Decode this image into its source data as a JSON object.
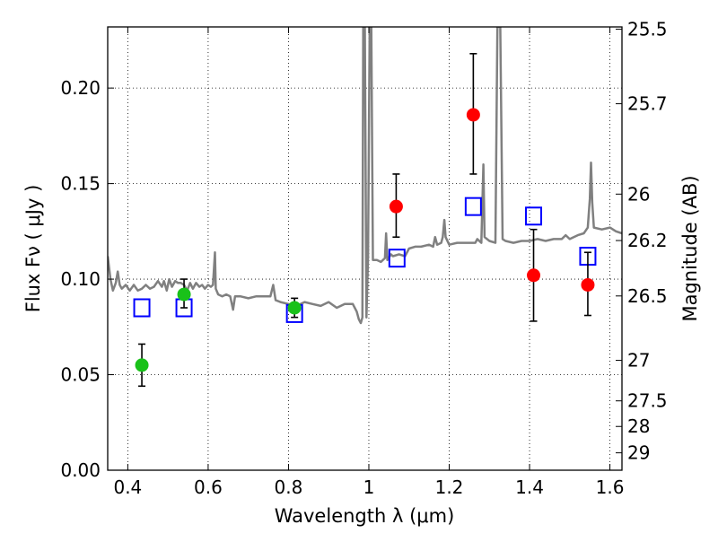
{
  "chart_data": {
    "type": "scatter",
    "xlabel": "Wavelength  λ (μm)",
    "ylabel": "Flux  Fν  ( μJy )",
    "ylabel_right": "Magnitude (AB)",
    "xlim": [
      0.35,
      1.63
    ],
    "ylim": [
      0.0,
      0.232
    ],
    "grid": true,
    "x_ticks": [
      {
        "value": 0.4,
        "label": "0.4"
      },
      {
        "value": 0.6,
        "label": "0.6"
      },
      {
        "value": 0.8,
        "label": "0.8"
      },
      {
        "value": 1.0,
        "label": "1"
      },
      {
        "value": 1.2,
        "label": "1.2"
      },
      {
        "value": 1.4,
        "label": "1.4"
      },
      {
        "value": 1.6,
        "label": "1.6"
      }
    ],
    "y_ticks": [
      {
        "value": 0.0,
        "label": "0.00"
      },
      {
        "value": 0.05,
        "label": "0.05"
      },
      {
        "value": 0.1,
        "label": "0.10"
      },
      {
        "value": 0.15,
        "label": "0.15"
      },
      {
        "value": 0.2,
        "label": "0.20"
      }
    ],
    "right_ticks": [
      {
        "flux": 0.2308,
        "label": "25.5"
      },
      {
        "flux": 0.1918,
        "label": "25.7"
      },
      {
        "flux": 0.1445,
        "label": "26"
      },
      {
        "flux": 0.1202,
        "label": "26.2"
      },
      {
        "flux": 0.0912,
        "label": "26.5"
      },
      {
        "flux": 0.0575,
        "label": "27"
      },
      {
        "flux": 0.0363,
        "label": "27.5"
      },
      {
        "flux": 0.0229,
        "label": "28"
      },
      {
        "flux": 0.0091,
        "label": "29"
      }
    ],
    "colors": {
      "model": "#808080",
      "optical": "#19c119",
      "nir": "#ff0000",
      "model_band": "#0000ff",
      "errorbar": "#000000",
      "grid": "#000000"
    },
    "series": [
      {
        "kind": "model_spectrum",
        "points": [
          [
            0.35,
            0.112
          ],
          [
            0.357,
            0.1
          ],
          [
            0.363,
            0.094
          ],
          [
            0.37,
            0.098
          ],
          [
            0.375,
            0.104
          ],
          [
            0.38,
            0.097
          ],
          [
            0.385,
            0.095
          ],
          [
            0.395,
            0.097
          ],
          [
            0.405,
            0.094
          ],
          [
            0.415,
            0.097
          ],
          [
            0.425,
            0.094
          ],
          [
            0.435,
            0.095
          ],
          [
            0.445,
            0.097
          ],
          [
            0.455,
            0.095
          ],
          [
            0.465,
            0.096
          ],
          [
            0.475,
            0.099
          ],
          [
            0.485,
            0.096
          ],
          [
            0.49,
            0.099
          ],
          [
            0.497,
            0.094
          ],
          [
            0.503,
            0.1
          ],
          [
            0.51,
            0.096
          ],
          [
            0.518,
            0.099
          ],
          [
            0.525,
            0.098
          ],
          [
            0.532,
            0.098
          ],
          [
            0.54,
            0.097
          ],
          [
            0.548,
            0.094
          ],
          [
            0.555,
            0.098
          ],
          [
            0.562,
            0.095
          ],
          [
            0.57,
            0.098
          ],
          [
            0.578,
            0.096
          ],
          [
            0.585,
            0.097
          ],
          [
            0.592,
            0.095
          ],
          [
            0.6,
            0.097
          ],
          [
            0.607,
            0.096
          ],
          [
            0.612,
            0.097
          ],
          [
            0.617,
            0.114
          ],
          [
            0.619,
            0.095
          ],
          [
            0.625,
            0.092
          ],
          [
            0.635,
            0.091
          ],
          [
            0.645,
            0.092
          ],
          [
            0.655,
            0.091
          ],
          [
            0.662,
            0.084
          ],
          [
            0.667,
            0.091
          ],
          [
            0.68,
            0.091
          ],
          [
            0.7,
            0.09
          ],
          [
            0.72,
            0.091
          ],
          [
            0.74,
            0.091
          ],
          [
            0.755,
            0.091
          ],
          [
            0.762,
            0.097
          ],
          [
            0.768,
            0.089
          ],
          [
            0.78,
            0.088
          ],
          [
            0.8,
            0.087
          ],
          [
            0.82,
            0.086
          ],
          [
            0.84,
            0.088
          ],
          [
            0.86,
            0.087
          ],
          [
            0.88,
            0.086
          ],
          [
            0.9,
            0.088
          ],
          [
            0.92,
            0.085
          ],
          [
            0.94,
            0.087
          ],
          [
            0.96,
            0.087
          ],
          [
            0.97,
            0.083
          ],
          [
            0.975,
            0.079
          ],
          [
            0.98,
            0.077
          ],
          [
            0.984,
            0.08
          ],
          [
            0.986,
            0.232
          ],
          [
            0.99,
            0.232
          ],
          [
            0.994,
            0.08
          ],
          [
            0.998,
            0.112
          ],
          [
            1.002,
            0.232
          ],
          [
            1.006,
            0.232
          ],
          [
            1.01,
            0.11
          ],
          [
            1.02,
            0.11
          ],
          [
            1.03,
            0.109
          ],
          [
            1.04,
            0.111
          ],
          [
            1.043,
            0.124
          ],
          [
            1.046,
            0.11
          ],
          [
            1.055,
            0.113
          ],
          [
            1.06,
            0.112
          ],
          [
            1.075,
            0.113
          ],
          [
            1.09,
            0.112
          ],
          [
            1.1,
            0.116
          ],
          [
            1.115,
            0.117
          ],
          [
            1.13,
            0.117
          ],
          [
            1.15,
            0.118
          ],
          [
            1.16,
            0.117
          ],
          [
            1.165,
            0.122
          ],
          [
            1.17,
            0.118
          ],
          [
            1.18,
            0.119
          ],
          [
            1.184,
            0.122
          ],
          [
            1.188,
            0.131
          ],
          [
            1.191,
            0.122
          ],
          [
            1.2,
            0.118
          ],
          [
            1.22,
            0.119
          ],
          [
            1.24,
            0.119
          ],
          [
            1.255,
            0.119
          ],
          [
            1.265,
            0.119
          ],
          [
            1.27,
            0.121
          ],
          [
            1.28,
            0.119
          ],
          [
            1.285,
            0.16
          ],
          [
            1.288,
            0.122
          ],
          [
            1.3,
            0.12
          ],
          [
            1.315,
            0.119
          ],
          [
            1.32,
            0.232
          ],
          [
            1.327,
            0.232
          ],
          [
            1.333,
            0.121
          ],
          [
            1.34,
            0.12
          ],
          [
            1.36,
            0.119
          ],
          [
            1.38,
            0.12
          ],
          [
            1.4,
            0.12
          ],
          [
            1.42,
            0.121
          ],
          [
            1.44,
            0.12
          ],
          [
            1.46,
            0.121
          ],
          [
            1.48,
            0.121
          ],
          [
            1.49,
            0.123
          ],
          [
            1.5,
            0.121
          ],
          [
            1.52,
            0.123
          ],
          [
            1.535,
            0.124
          ],
          [
            1.545,
            0.127
          ],
          [
            1.55,
            0.142
          ],
          [
            1.553,
            0.161
          ],
          [
            1.556,
            0.14
          ],
          [
            1.56,
            0.127
          ],
          [
            1.58,
            0.126
          ],
          [
            1.6,
            0.127
          ],
          [
            1.615,
            0.125
          ],
          [
            1.63,
            0.124
          ]
        ]
      },
      {
        "kind": "model_band_flux",
        "marker": "open-square",
        "points": [
          [
            0.435,
            0.085
          ],
          [
            0.54,
            0.085
          ],
          [
            0.815,
            0.082
          ],
          [
            1.07,
            0.111
          ],
          [
            1.26,
            0.138
          ],
          [
            1.41,
            0.133
          ],
          [
            1.545,
            0.112
          ]
        ]
      },
      {
        "kind": "observed_optical",
        "marker": "filled-circle",
        "points": [
          {
            "x": 0.435,
            "y": 0.055,
            "lo": 0.044,
            "hi": 0.066
          },
          {
            "x": 0.54,
            "y": 0.092,
            "lo": 0.085,
            "hi": 0.1
          },
          {
            "x": 0.815,
            "y": 0.085,
            "lo": 0.08,
            "hi": 0.09
          }
        ]
      },
      {
        "kind": "observed_nir",
        "marker": "filled-circle",
        "points": [
          {
            "x": 1.068,
            "y": 0.138,
            "lo": 0.122,
            "hi": 0.155
          },
          {
            "x": 1.26,
            "y": 0.186,
            "lo": 0.155,
            "hi": 0.218
          },
          {
            "x": 1.41,
            "y": 0.102,
            "lo": 0.078,
            "hi": 0.126
          },
          {
            "x": 1.545,
            "y": 0.097,
            "lo": 0.081,
            "hi": 0.114
          }
        ]
      }
    ]
  }
}
